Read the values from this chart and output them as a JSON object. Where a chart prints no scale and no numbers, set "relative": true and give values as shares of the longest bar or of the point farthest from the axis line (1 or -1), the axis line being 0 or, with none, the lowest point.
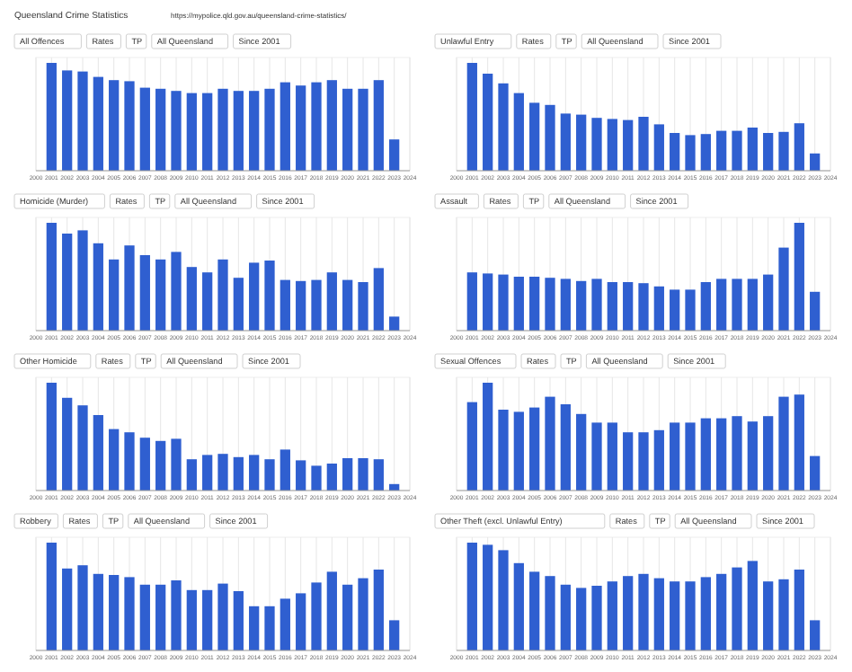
{
  "chart_data": [
    {
      "type": "other",
      "title": "Queensland Crime Statistics",
      "annotations": [
        "https://mypolice.qld.gov.au/queensland-crime-statistics/"
      ]
    },
    {
      "type": "bar",
      "title": "All Offences",
      "annotations": [
        "Rates",
        "TP",
        "All Queensland",
        "Since 2001"
      ],
      "relative": true,
      "color": "#2f5fd0",
      "grid": "x",
      "xlim": [
        2000,
        2024
      ],
      "xticks": [
        2000,
        2001,
        2002,
        2003,
        2004,
        2005,
        2006,
        2007,
        2008,
        2009,
        2010,
        2011,
        2012,
        2013,
        2014,
        2015,
        2016,
        2017,
        2018,
        2019,
        2020,
        2021,
        2022,
        2023,
        2024
      ],
      "x": [
        2001,
        2002,
        2003,
        2004,
        2005,
        2006,
        2007,
        2008,
        2009,
        2010,
        2011,
        2012,
        2013,
        2014,
        2015,
        2016,
        2017,
        2018,
        2019,
        2020,
        2021,
        2022,
        2023
      ],
      "values": [
        1,
        0.93,
        0.92,
        0.87,
        0.84,
        0.83,
        0.77,
        0.76,
        0.74,
        0.72,
        0.72,
        0.76,
        0.74,
        0.74,
        0.76,
        0.82,
        0.79,
        0.82,
        0.84,
        0.76,
        0.76,
        0.84,
        0.29
      ]
    },
    {
      "type": "bar",
      "title": "Unlawful Entry",
      "annotations": [
        "Rates",
        "TP",
        "All Queensland",
        "Since 2001"
      ],
      "relative": true,
      "color": "#2f5fd0",
      "grid": "x",
      "xlim": [
        2000,
        2024
      ],
      "xticks": [
        2000,
        2001,
        2002,
        2003,
        2004,
        2005,
        2006,
        2007,
        2008,
        2009,
        2010,
        2011,
        2012,
        2013,
        2014,
        2015,
        2016,
        2017,
        2018,
        2019,
        2020,
        2021,
        2022,
        2023,
        2024
      ],
      "x": [
        2001,
        2002,
        2003,
        2004,
        2005,
        2006,
        2007,
        2008,
        2009,
        2010,
        2011,
        2012,
        2013,
        2014,
        2015,
        2016,
        2017,
        2018,
        2019,
        2020,
        2021,
        2022,
        2023
      ],
      "values": [
        1,
        0.9,
        0.81,
        0.72,
        0.63,
        0.61,
        0.53,
        0.52,
        0.49,
        0.48,
        0.47,
        0.5,
        0.43,
        0.35,
        0.33,
        0.34,
        0.37,
        0.37,
        0.4,
        0.35,
        0.36,
        0.44,
        0.16
      ]
    },
    {
      "type": "bar",
      "title": "Homicide (Murder)",
      "annotations": [
        "Rates",
        "TP",
        "All Queensland",
        "Since 2001"
      ],
      "relative": true,
      "color": "#2f5fd0",
      "grid": "x",
      "xlim": [
        2000,
        2024
      ],
      "xticks": [
        2000,
        2001,
        2002,
        2003,
        2004,
        2005,
        2006,
        2007,
        2008,
        2009,
        2010,
        2011,
        2012,
        2013,
        2014,
        2015,
        2016,
        2017,
        2018,
        2019,
        2020,
        2021,
        2022,
        2023,
        2024
      ],
      "x": [
        2001,
        2002,
        2003,
        2004,
        2005,
        2006,
        2007,
        2008,
        2009,
        2010,
        2011,
        2012,
        2013,
        2014,
        2015,
        2016,
        2017,
        2018,
        2019,
        2020,
        2021,
        2022,
        2023
      ],
      "values": [
        1,
        0.9,
        0.93,
        0.81,
        0.66,
        0.79,
        0.7,
        0.66,
        0.73,
        0.59,
        0.54,
        0.66,
        0.49,
        0.63,
        0.65,
        0.47,
        0.46,
        0.47,
        0.54,
        0.47,
        0.45,
        0.58,
        0.13
      ]
    },
    {
      "type": "bar",
      "title": "Assault",
      "annotations": [
        "Rates",
        "TP",
        "All Queensland",
        "Since 2001"
      ],
      "relative": true,
      "color": "#2f5fd0",
      "grid": "x",
      "xlim": [
        2000,
        2024
      ],
      "xticks": [
        2000,
        2001,
        2002,
        2003,
        2004,
        2005,
        2006,
        2007,
        2008,
        2009,
        2010,
        2011,
        2012,
        2013,
        2014,
        2015,
        2016,
        2017,
        2018,
        2019,
        2020,
        2021,
        2022,
        2023,
        2024
      ],
      "x": [
        2001,
        2002,
        2003,
        2004,
        2005,
        2006,
        2007,
        2008,
        2009,
        2010,
        2011,
        2012,
        2013,
        2014,
        2015,
        2016,
        2017,
        2018,
        2019,
        2020,
        2021,
        2022,
        2023
      ],
      "values": [
        0.54,
        0.53,
        0.52,
        0.5,
        0.5,
        0.49,
        0.48,
        0.46,
        0.48,
        0.45,
        0.45,
        0.44,
        0.41,
        0.38,
        0.38,
        0.45,
        0.48,
        0.48,
        0.48,
        0.52,
        0.77,
        1,
        0.36
      ]
    },
    {
      "type": "bar",
      "title": "Other Homicide",
      "annotations": [
        "Rates",
        "TP",
        "All Queensland",
        "Since 2001"
      ],
      "relative": true,
      "color": "#2f5fd0",
      "grid": "x",
      "xlim": [
        2000,
        2024
      ],
      "xticks": [
        2000,
        2001,
        2002,
        2003,
        2004,
        2005,
        2006,
        2007,
        2008,
        2009,
        2010,
        2011,
        2012,
        2013,
        2014,
        2015,
        2016,
        2017,
        2018,
        2019,
        2020,
        2021,
        2022,
        2023,
        2024
      ],
      "x": [
        2001,
        2002,
        2003,
        2004,
        2005,
        2006,
        2007,
        2008,
        2009,
        2010,
        2011,
        2012,
        2013,
        2014,
        2015,
        2016,
        2017,
        2018,
        2019,
        2020,
        2021,
        2022,
        2023
      ],
      "values": [
        1,
        0.86,
        0.79,
        0.7,
        0.57,
        0.54,
        0.49,
        0.46,
        0.48,
        0.29,
        0.33,
        0.34,
        0.31,
        0.33,
        0.29,
        0.38,
        0.28,
        0.23,
        0.25,
        0.3,
        0.3,
        0.29,
        0.06
      ]
    },
    {
      "type": "bar",
      "title": "Sexual Offences",
      "annotations": [
        "Rates",
        "TP",
        "All Queensland",
        "Since 2001"
      ],
      "relative": true,
      "color": "#2f5fd0",
      "grid": "x",
      "xlim": [
        2000,
        2024
      ],
      "xticks": [
        2000,
        2001,
        2002,
        2003,
        2004,
        2005,
        2006,
        2007,
        2008,
        2009,
        2010,
        2011,
        2012,
        2013,
        2014,
        2015,
        2016,
        2017,
        2018,
        2019,
        2020,
        2021,
        2022,
        2023,
        2024
      ],
      "x": [
        2001,
        2002,
        2003,
        2004,
        2005,
        2006,
        2007,
        2008,
        2009,
        2010,
        2011,
        2012,
        2013,
        2014,
        2015,
        2016,
        2017,
        2018,
        2019,
        2020,
        2021,
        2022,
        2023
      ],
      "values": [
        0.82,
        1,
        0.75,
        0.73,
        0.77,
        0.87,
        0.8,
        0.71,
        0.63,
        0.63,
        0.54,
        0.54,
        0.56,
        0.63,
        0.63,
        0.67,
        0.67,
        0.69,
        0.64,
        0.69,
        0.87,
        0.89,
        0.32
      ]
    },
    {
      "type": "bar",
      "title": "Robbery",
      "annotations": [
        "Rates",
        "TP",
        "All Queensland",
        "Since 2001"
      ],
      "relative": true,
      "color": "#2f5fd0",
      "grid": "x",
      "xlim": [
        2000,
        2024
      ],
      "xticks": [
        2000,
        2001,
        2002,
        2003,
        2004,
        2005,
        2006,
        2007,
        2008,
        2009,
        2010,
        2011,
        2012,
        2013,
        2014,
        2015,
        2016,
        2017,
        2018,
        2019,
        2020,
        2021,
        2022,
        2023,
        2024
      ],
      "x": [
        2001,
        2002,
        2003,
        2004,
        2005,
        2006,
        2007,
        2008,
        2009,
        2010,
        2011,
        2012,
        2013,
        2014,
        2015,
        2016,
        2017,
        2018,
        2019,
        2020,
        2021,
        2022,
        2023
      ],
      "values": [
        1,
        0.76,
        0.79,
        0.71,
        0.7,
        0.68,
        0.61,
        0.61,
        0.65,
        0.56,
        0.56,
        0.62,
        0.55,
        0.41,
        0.41,
        0.48,
        0.53,
        0.63,
        0.73,
        0.61,
        0.67,
        0.75,
        0.28
      ]
    },
    {
      "type": "bar",
      "title": "Other Theft (excl. Unlawful Entry)",
      "annotations": [
        "Rates",
        "TP",
        "All Queensland",
        "Since 2001"
      ],
      "relative": true,
      "color": "#2f5fd0",
      "grid": "x",
      "xlim": [
        2000,
        2024
      ],
      "xticks": [
        2000,
        2001,
        2002,
        2003,
        2004,
        2005,
        2006,
        2007,
        2008,
        2009,
        2010,
        2011,
        2012,
        2013,
        2014,
        2015,
        2016,
        2017,
        2018,
        2019,
        2020,
        2021,
        2022,
        2023,
        2024
      ],
      "x": [
        2001,
        2002,
        2003,
        2004,
        2005,
        2006,
        2007,
        2008,
        2009,
        2010,
        2011,
        2012,
        2013,
        2014,
        2015,
        2016,
        2017,
        2018,
        2019,
        2020,
        2021,
        2022,
        2023
      ],
      "values": [
        1,
        0.98,
        0.93,
        0.81,
        0.73,
        0.69,
        0.61,
        0.58,
        0.6,
        0.64,
        0.69,
        0.71,
        0.67,
        0.64,
        0.64,
        0.68,
        0.71,
        0.77,
        0.83,
        0.64,
        0.66,
        0.75,
        0.28
      ]
    }
  ]
}
